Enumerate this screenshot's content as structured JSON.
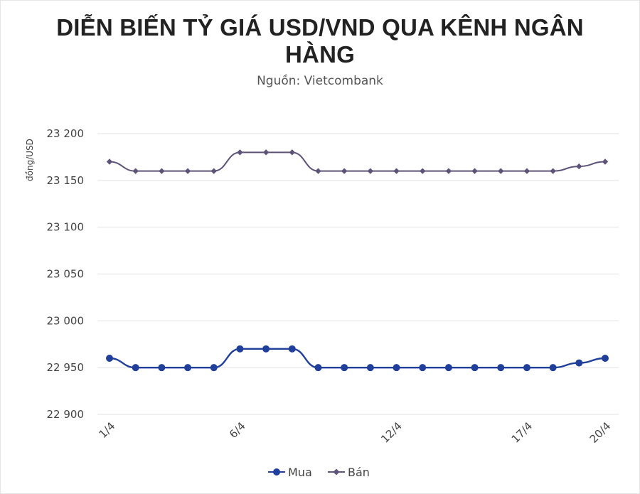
{
  "chart_data": {
    "type": "line",
    "title": "DIỄN BIẾN TỶ GIÁ USD/VND QUA KÊNH NGÂN HÀNG",
    "subtitle": "Nguồn: Vietcombank",
    "ylabel": "đồng/USD",
    "xlabel": "",
    "ylim": [
      22900,
      23200
    ],
    "yticks": [
      22900,
      22950,
      23000,
      23050,
      23100,
      23150,
      23200
    ],
    "ytick_labels": [
      "22 900",
      "22 950",
      "23 000",
      "23 050",
      "23 100",
      "23 150",
      "23 200"
    ],
    "x": [
      "1/4",
      "2/4",
      "3/4",
      "4/4",
      "5/4",
      "6/4",
      "7/4",
      "8/4",
      "9/4",
      "10/4",
      "11/4",
      "12/4",
      "13/4",
      "14/4",
      "15/4",
      "16/4",
      "17/4",
      "18/4",
      "19/4",
      "20/4"
    ],
    "x_tick_labels": [
      "1/4",
      "6/4",
      "12/4",
      "17/4",
      "20/4"
    ],
    "grid": true,
    "legend_position": "bottom",
    "series": [
      {
        "name": "Mua",
        "color": "#1f3f9a",
        "marker": "circle",
        "values": [
          22960,
          22950,
          22950,
          22950,
          22950,
          22970,
          22970,
          22970,
          22950,
          22950,
          22950,
          22950,
          22950,
          22950,
          22950,
          22950,
          22950,
          22950,
          22955,
          22960
        ]
      },
      {
        "name": "Bán",
        "color": "#5e5378",
        "marker": "diamond",
        "values": [
          23170,
          23160,
          23160,
          23160,
          23160,
          23180,
          23180,
          23180,
          23160,
          23160,
          23160,
          23160,
          23160,
          23160,
          23160,
          23160,
          23160,
          23160,
          23165,
          23170
        ]
      }
    ]
  }
}
